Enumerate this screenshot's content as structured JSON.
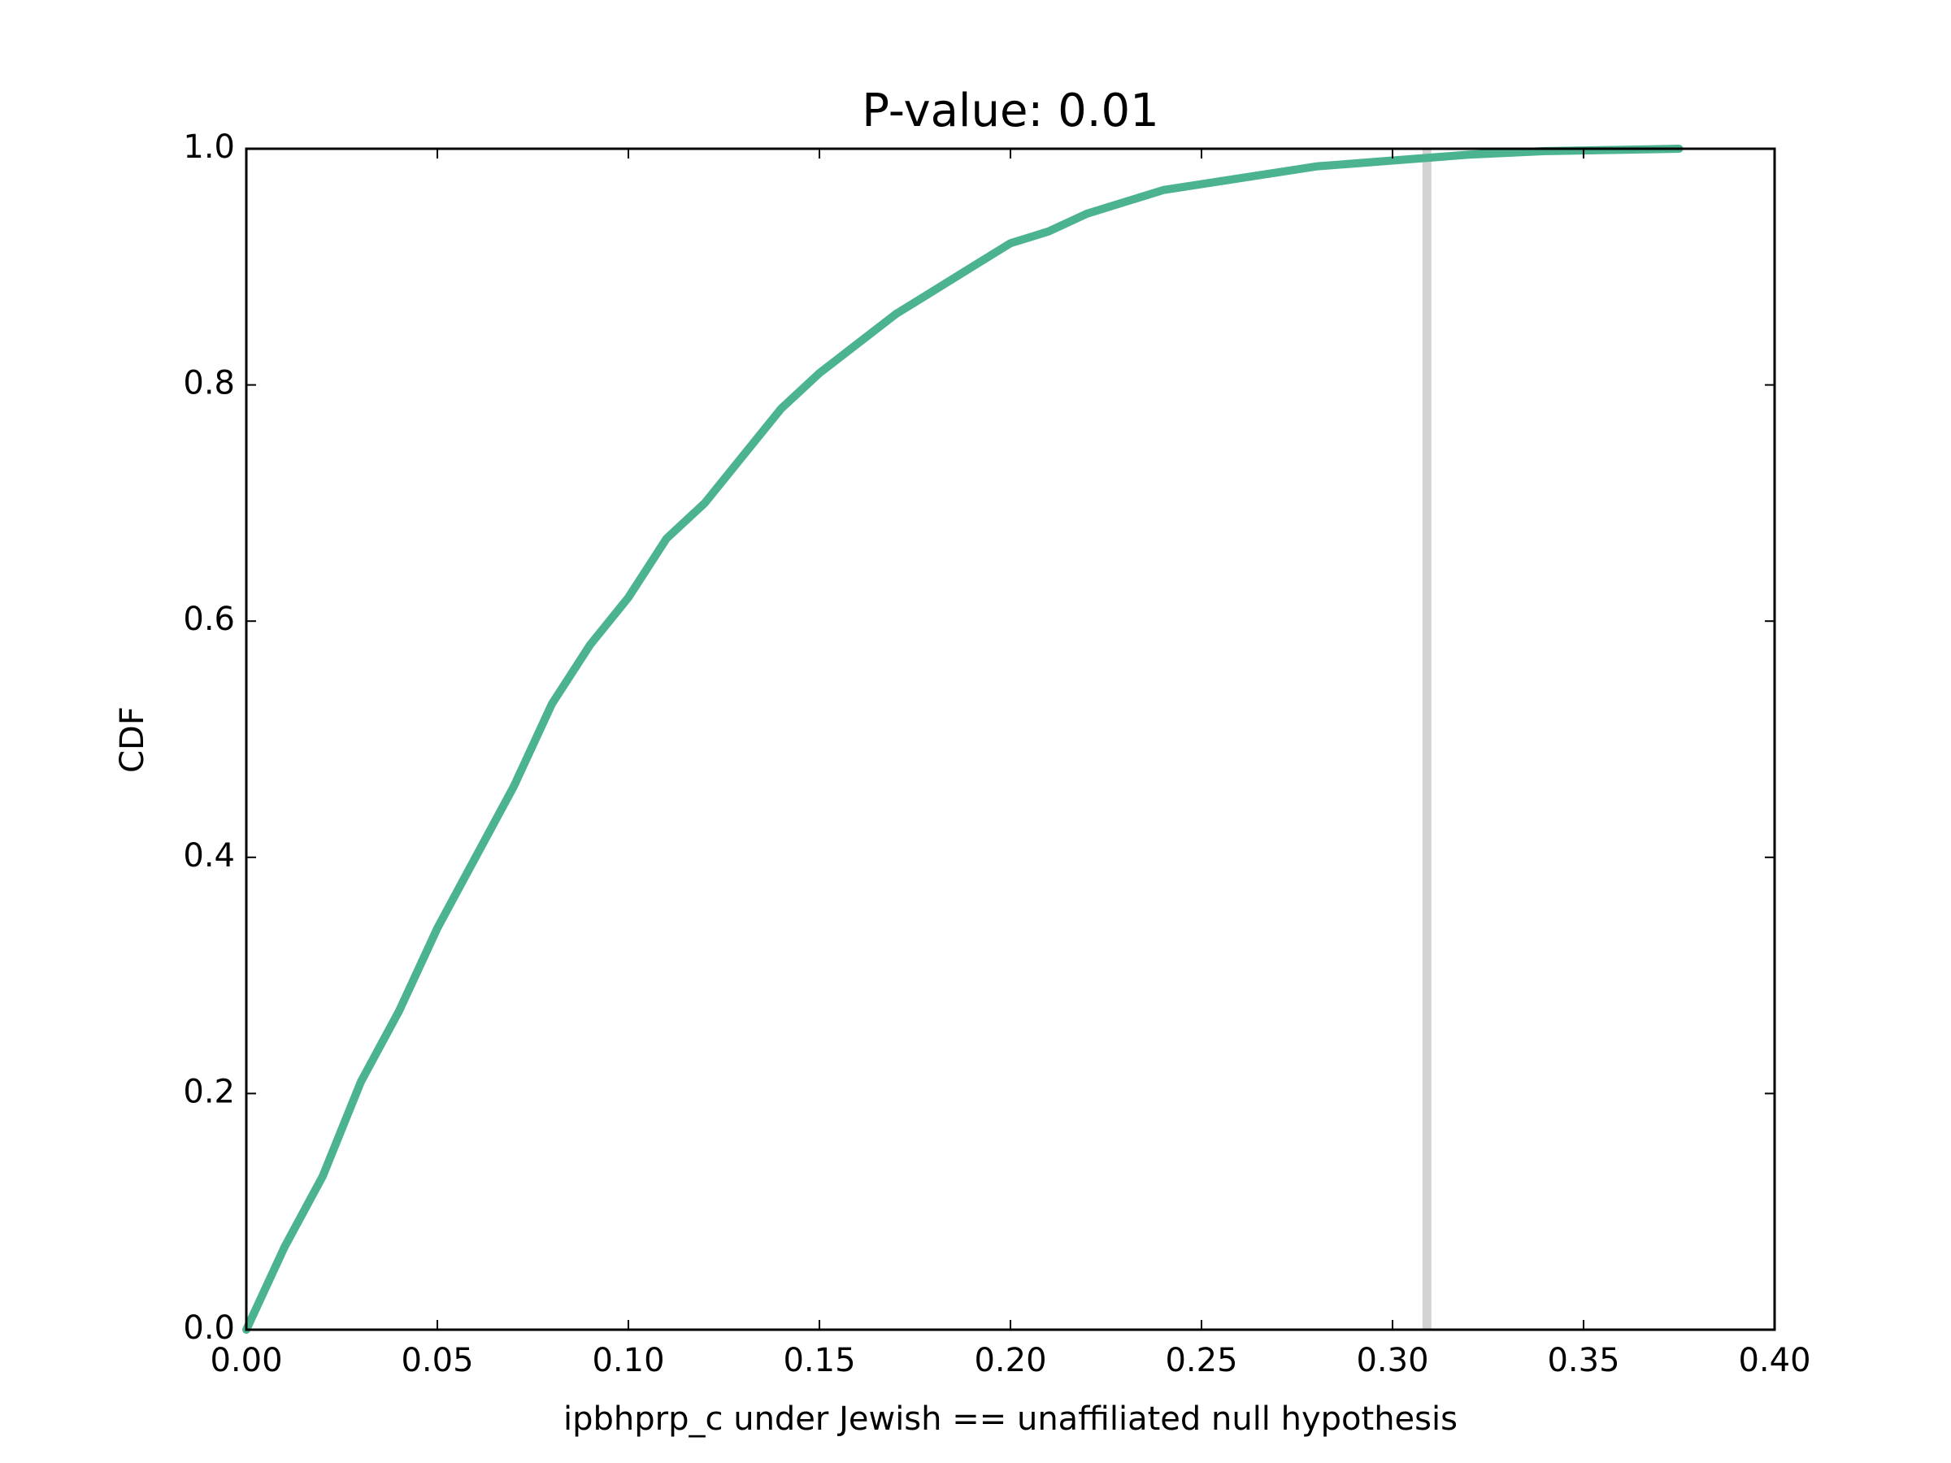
{
  "chart_data": {
    "type": "line",
    "title": "P-value: 0.01",
    "xlabel": "ipbhprp_c under Jewish == unaffiliated null hypothesis",
    "ylabel": "CDF",
    "x": [
      0,
      0.01,
      0.02,
      0.03,
      0.04,
      0.05,
      0.06,
      0.07,
      0.08,
      0.09,
      0.1,
      0.11,
      0.12,
      0.13,
      0.14,
      0.15,
      0.16,
      0.17,
      0.18,
      0.19,
      0.2,
      0.21,
      0.22,
      0.23,
      0.24,
      0.25,
      0.26,
      0.28,
      0.3,
      0.32,
      0.34,
      0.375
    ],
    "values": [
      0,
      0.07,
      0.13,
      0.21,
      0.27,
      0.34,
      0.4,
      0.46,
      0.53,
      0.58,
      0.62,
      0.67,
      0.7,
      0.74,
      0.78,
      0.81,
      0.835,
      0.86,
      0.88,
      0.9,
      0.92,
      0.93,
      0.945,
      0.955,
      0.965,
      0.97,
      0.975,
      0.985,
      0.99,
      0.995,
      0.998,
      1.0
    ],
    "color": "#4cb391",
    "vline": 0.309,
    "vline_color": "#d3d3d3",
    "xlim": [
      0,
      0.4
    ],
    "ylim": [
      0,
      1
    ],
    "xticks": [
      {
        "value": 0,
        "label": "0.00"
      },
      {
        "value": 0.05,
        "label": "0.05"
      },
      {
        "value": 0.1,
        "label": "0.10"
      },
      {
        "value": 0.15,
        "label": "0.15"
      },
      {
        "value": 0.2,
        "label": "0.20"
      },
      {
        "value": 0.25,
        "label": "0.25"
      },
      {
        "value": 0.3,
        "label": "0.30"
      },
      {
        "value": 0.35,
        "label": "0.35"
      },
      {
        "value": 0.4,
        "label": "0.40"
      }
    ],
    "yticks": [
      {
        "value": 0,
        "label": "0.0"
      },
      {
        "value": 0.2,
        "label": "0.2"
      },
      {
        "value": 0.4,
        "label": "0.4"
      },
      {
        "value": 0.6,
        "label": "0.6"
      },
      {
        "value": 0.8,
        "label": "0.8"
      },
      {
        "value": 1,
        "label": "1.0"
      }
    ]
  }
}
